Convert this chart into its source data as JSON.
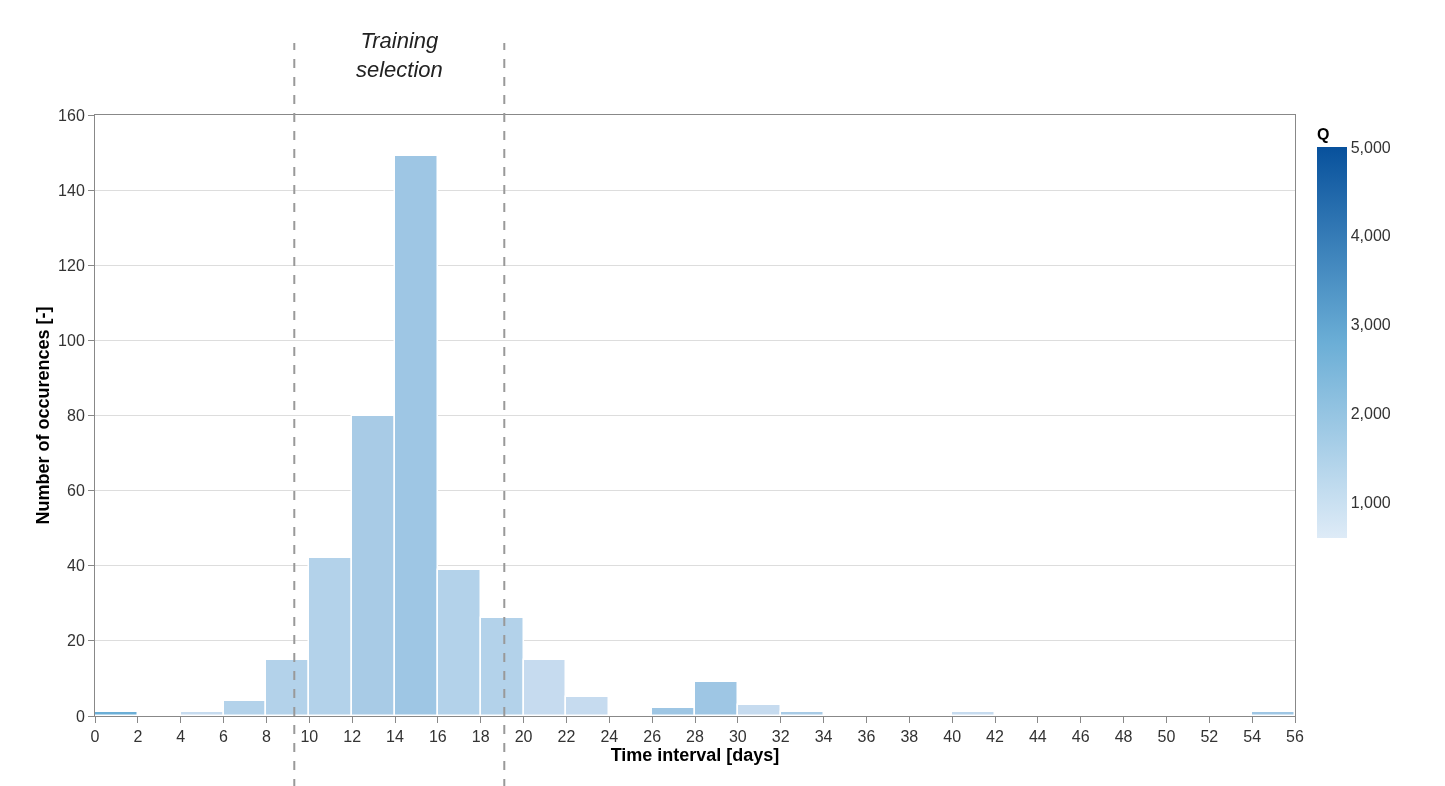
{
  "chart_data": {
    "type": "histogram",
    "xlabel": "Time interval [days]",
    "ylabel": "Number of occurences [-]",
    "clabel": "Q",
    "bins": [
      0,
      2,
      4,
      6,
      8,
      10,
      12,
      14,
      16,
      18,
      20,
      22,
      24,
      26,
      28,
      30,
      32,
      34,
      36,
      38,
      40,
      42,
      44,
      46,
      48,
      50,
      52,
      54,
      56
    ],
    "values": [
      1,
      0,
      1,
      4,
      15,
      42,
      80,
      149,
      39,
      26,
      15,
      5,
      0,
      2,
      9,
      3,
      1,
      0,
      0,
      0,
      1,
      0,
      0,
      0,
      0,
      0,
      0,
      1
    ],
    "colors": [
      "#6baed6",
      null,
      "#c6dbef",
      "#b3d2ea",
      "#b3d2ea",
      "#b3d2ea",
      "#a8cbe6",
      "#9ec6e4",
      "#b3d2ea",
      "#b3d2ea",
      "#c6dbef",
      "#c6dbef",
      null,
      "#9ec6e4",
      "#9ec6e4",
      "#c6dbef",
      "#a8cbe6",
      null,
      null,
      null,
      "#c6dbef",
      null,
      null,
      null,
      null,
      null,
      null,
      "#9ec6e4"
    ],
    "xlim": [
      0,
      56
    ],
    "xticks": [
      0,
      2,
      4,
      6,
      8,
      10,
      12,
      14,
      16,
      18,
      20,
      22,
      24,
      26,
      28,
      30,
      32,
      34,
      36,
      38,
      40,
      42,
      44,
      46,
      48,
      50,
      52,
      54,
      56
    ],
    "ylim": [
      0,
      160
    ],
    "yticks": [
      0,
      20,
      40,
      60,
      80,
      100,
      120,
      140,
      160
    ],
    "clim": [
      600,
      5000
    ],
    "cticks": [
      {
        "value": 1000,
        "label": "1,000"
      },
      {
        "value": 2000,
        "label": "2,000"
      },
      {
        "value": 3000,
        "label": "3,000"
      },
      {
        "value": 4000,
        "label": "4,000"
      },
      {
        "value": 5000,
        "label": "5,000"
      }
    ],
    "ref_lines": [
      {
        "axis": "x",
        "value": 9.3,
        "color": "#999999",
        "line_style": "dashed"
      },
      {
        "axis": "x",
        "value": 19.1,
        "color": "#999999",
        "line_style": "dashed"
      }
    ],
    "annotations": [
      "Training\nselection"
    ],
    "grid": "y"
  }
}
